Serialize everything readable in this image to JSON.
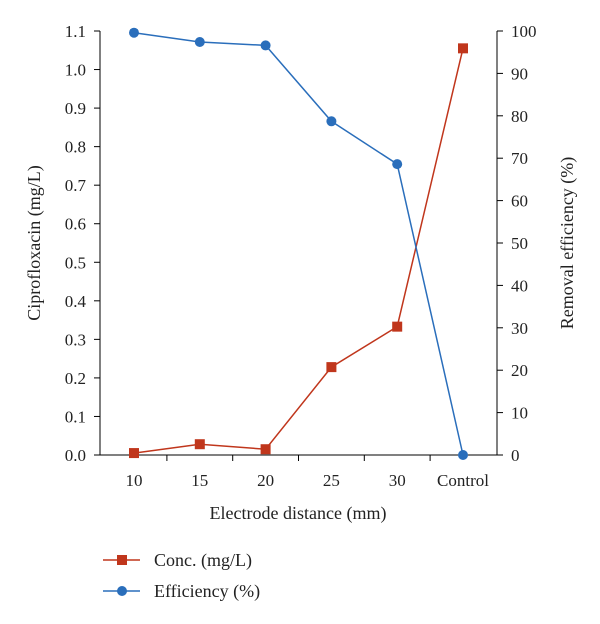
{
  "chart_data": {
    "type": "line",
    "categories": [
      "10",
      "15",
      "20",
      "25",
      "30",
      "Control"
    ],
    "xlabel": "Electrode distance (mm)",
    "ylabel_left": "Ciprofloxacin (mg/L)",
    "ylabel_right": "Removal efficiency (%)",
    "ylim_left": [
      0,
      1.1
    ],
    "ylim_right": [
      0,
      100
    ],
    "yticks_left": [
      "0.0",
      "0.1",
      "0.2",
      "0.3",
      "0.4",
      "0.5",
      "0.6",
      "0.7",
      "0.8",
      "0.9",
      "1.0",
      "1.1"
    ],
    "yticks_right": [
      "0",
      "10",
      "20",
      "30",
      "40",
      "50",
      "60",
      "70",
      "80",
      "90",
      "100"
    ],
    "grid": false,
    "legend_position": "bottom-left",
    "series": [
      {
        "name": "Conc. (mg/L)",
        "axis": "left",
        "marker": "square",
        "color": "#c0361c",
        "values": [
          0.005,
          0.028,
          0.015,
          0.228,
          0.333,
          1.055
        ]
      },
      {
        "name": "Efficiency (%)",
        "axis": "right",
        "marker": "circle",
        "color": "#2a6ebb",
        "values": [
          99.6,
          97.4,
          96.6,
          78.7,
          68.6,
          0
        ]
      }
    ]
  }
}
